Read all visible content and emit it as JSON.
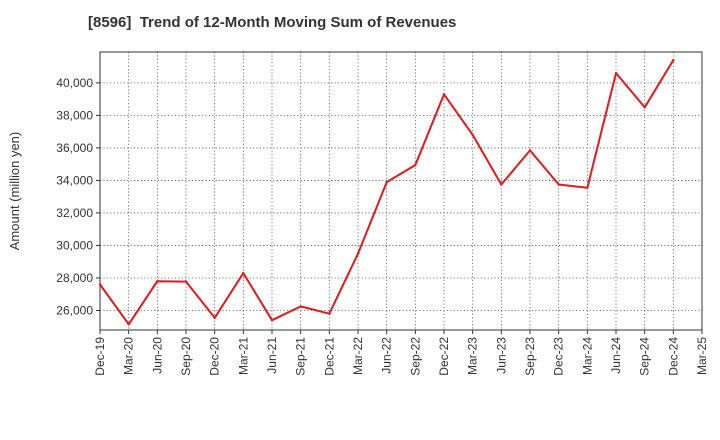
{
  "chart_data": {
    "type": "line",
    "title": "[8596]  Trend of 12-Month Moving Sum of Revenues",
    "xlabel": "",
    "ylabel": "Amount (million yen)",
    "categories": [
      "Dec-19",
      "Mar-20",
      "Jun-20",
      "Sep-20",
      "Dec-20",
      "Mar-21",
      "Jun-21",
      "Sep-21",
      "Dec-21",
      "Mar-22",
      "Jun-22",
      "Sep-22",
      "Dec-22",
      "Mar-23",
      "Jun-23",
      "Sep-23",
      "Dec-23",
      "Mar-24",
      "Jun-24",
      "Sep-24",
      "Dec-24",
      "Mar-25"
    ],
    "y_ticks": [
      26000,
      28000,
      30000,
      32000,
      34000,
      36000,
      38000,
      40000
    ],
    "y_tick_labels": [
      "26,000",
      "28,000",
      "30,000",
      "32,000",
      "34,000",
      "36,000",
      "38,000",
      "40,000"
    ],
    "ylim": [
      24800,
      41900
    ],
    "grid": true,
    "series": [
      {
        "name": "",
        "color": "#e31a1c",
        "values": [
          27600,
          25150,
          27800,
          27780,
          25550,
          28300,
          25400,
          26250,
          25800,
          29500,
          33900,
          34950,
          39300,
          36800,
          33750,
          35850,
          33750,
          33550,
          40600,
          38500,
          41400,
          null
        ]
      }
    ]
  }
}
